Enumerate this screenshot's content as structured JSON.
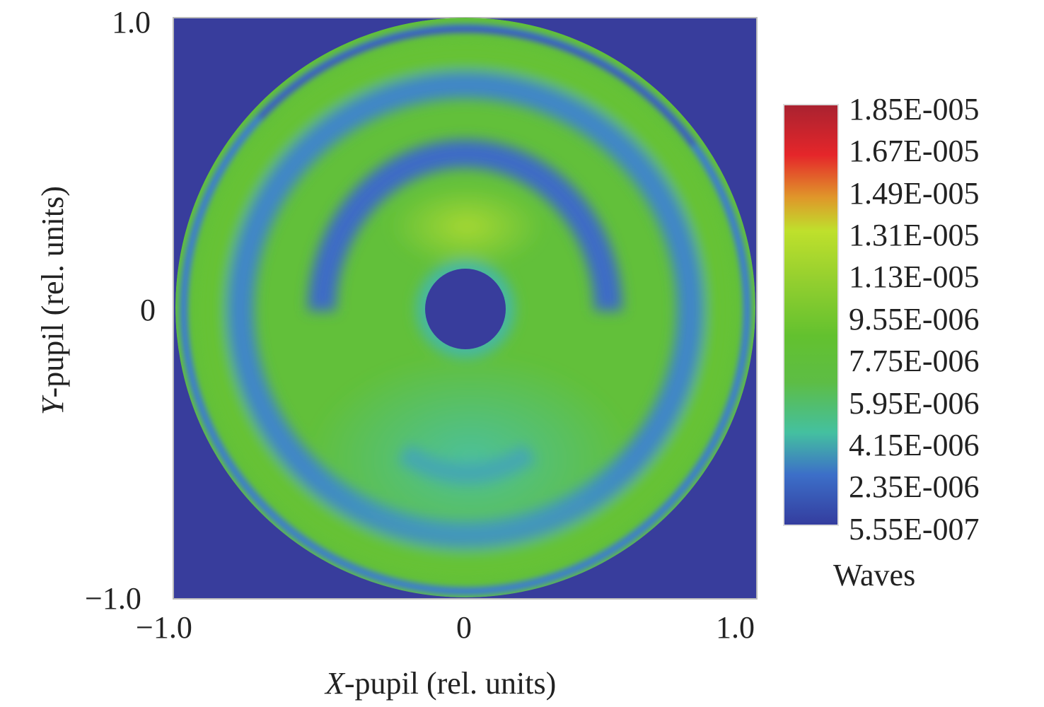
{
  "chart_data": {
    "type": "heatmap",
    "title": "",
    "xlabel_var": "X",
    "xlabel_rest": "-pupil (rel. units)",
    "ylabel_var": "Y",
    "ylabel_rest": "-pupil (rel. units)",
    "xlim": [
      -1.0,
      1.0
    ],
    "ylim": [
      -1.0,
      1.0
    ],
    "x_ticks": [
      "−1.0",
      "0",
      "1.0"
    ],
    "y_ticks": [
      "1.0",
      "0",
      "−1.0"
    ],
    "colorbar": {
      "label": "Waves",
      "range": [
        5.55e-07,
        1.85e-05
      ],
      "ticks": [
        "1.85E-005",
        "1.67E-005",
        "1.49E-005",
        "1.31E-005",
        "1.13E-005",
        "9.55E-006",
        "7.75E-006",
        "5.95E-006",
        "4.15E-006",
        "2.35E-006",
        "5.55E-007"
      ],
      "colors": [
        "#a92230",
        "#e5262a",
        "#e0962a",
        "#bfe02c",
        "#93cf2f",
        "#63c12f",
        "#5dbd45",
        "#45c096",
        "#3c7fcc",
        "#343c9e"
      ]
    },
    "pupil": {
      "outer_radius": 1.0,
      "obscuration_radius": 0.14
    },
    "background_color": "#383d9c"
  }
}
